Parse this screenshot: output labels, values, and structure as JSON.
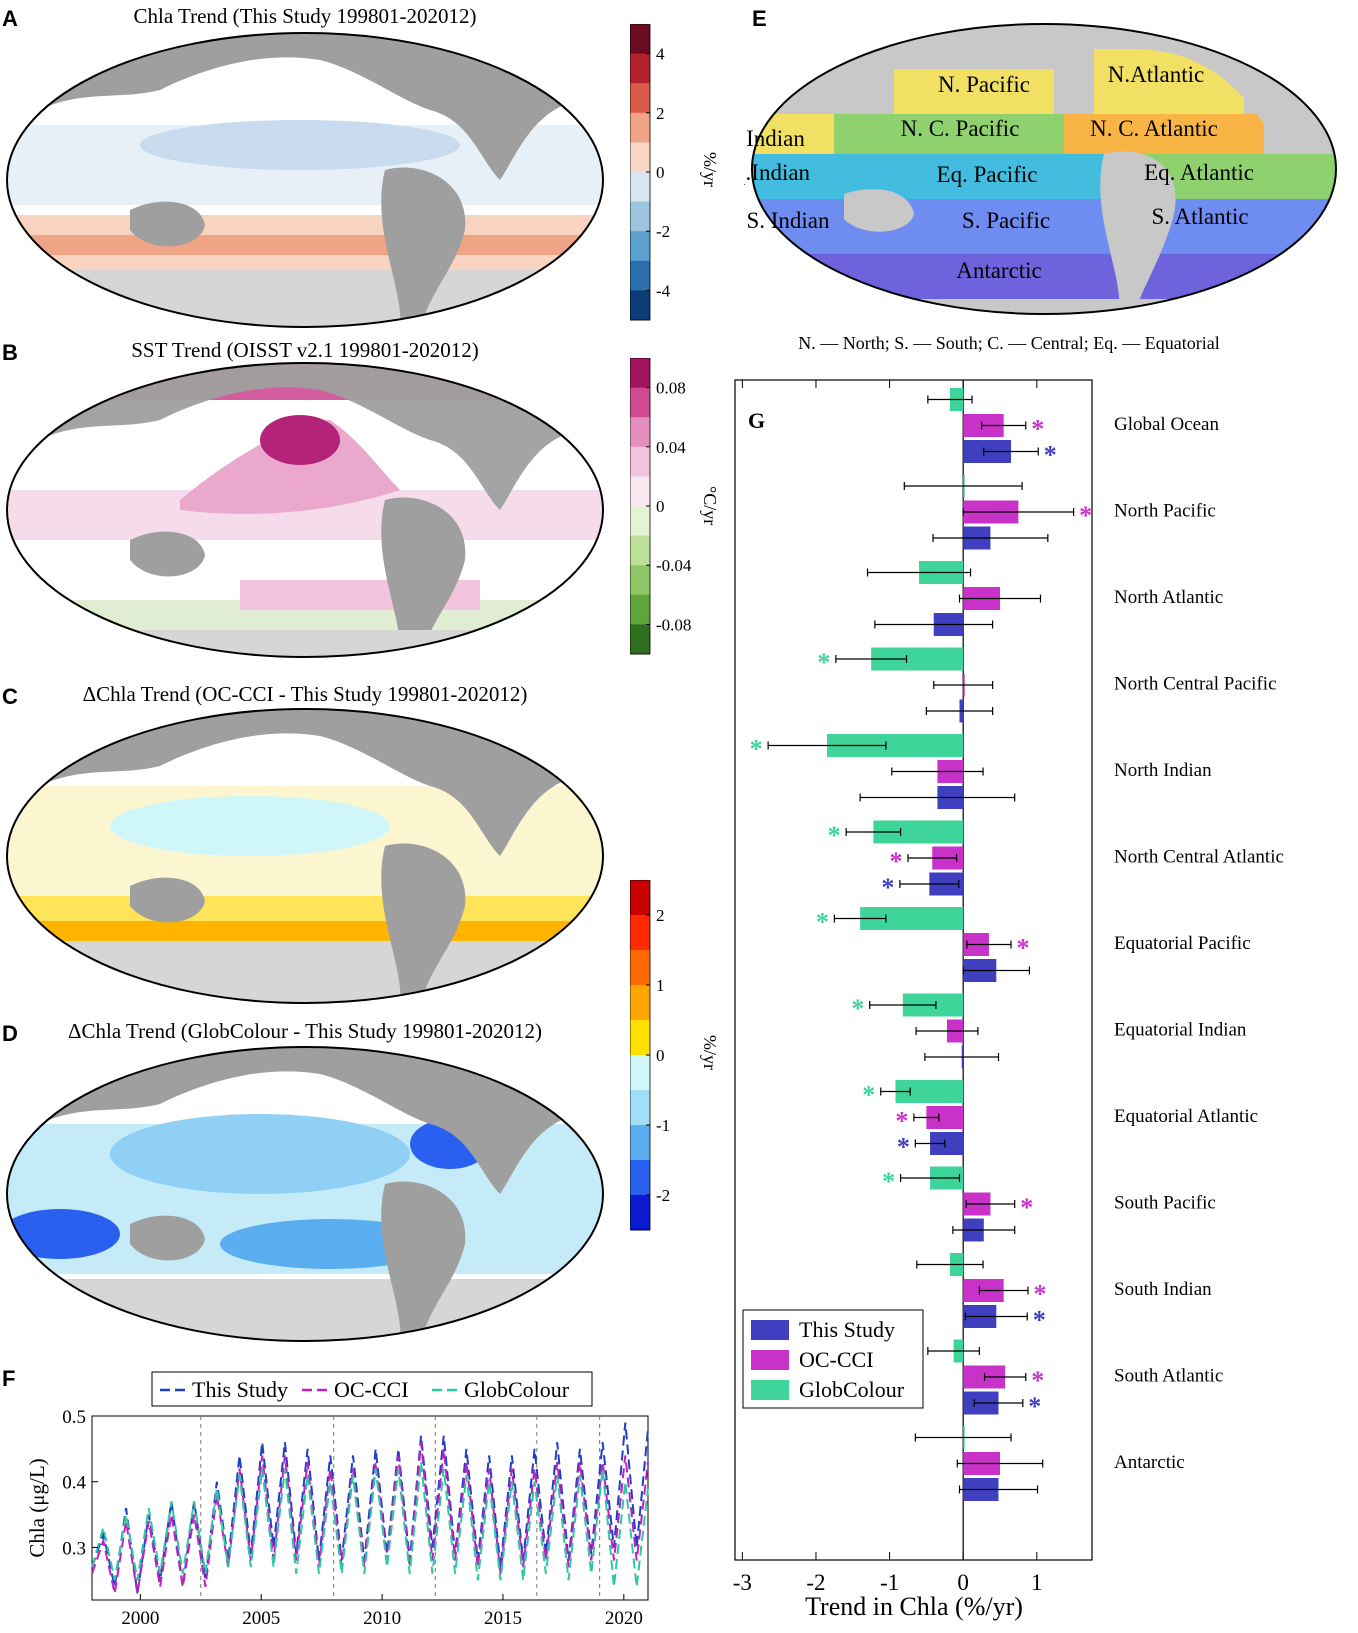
{
  "panels": {
    "A": {
      "letter": "A",
      "title": "Chla Trend (This Study 199801-202012)",
      "colorbar": {
        "ticks": [
          "4",
          "2",
          "0",
          "-2",
          "-4"
        ],
        "unit": "%/yr",
        "colors": [
          "#6b0b1f",
          "#b3212f",
          "#d95a48",
          "#f0a486",
          "#fbd7c4",
          "#d8e6f0",
          "#9cc6e0",
          "#5aa1cf",
          "#2b6fae",
          "#0d3d78"
        ]
      }
    },
    "B": {
      "letter": "B",
      "title": "SST Trend (OISST v2.1 199801-202012)",
      "colorbar": {
        "ticks": [
          "0.08",
          "0.04",
          "0",
          "-0.04",
          "-0.08"
        ],
        "unit": "°C/yr",
        "colors": [
          "#a3145f",
          "#cf4a92",
          "#e48fc0",
          "#f3c4de",
          "#fbe6f1",
          "#e6f2d4",
          "#bde099",
          "#8fc766",
          "#5fa53c",
          "#2f6e1f"
        ]
      }
    },
    "C": {
      "letter": "C",
      "title": "ΔChla Trend (OC-CCI - This Study 199801-202012)"
    },
    "D": {
      "letter": "D",
      "title": "ΔChla Trend (GlobColour - This Study 199801-202012)",
      "colorbar": {
        "ticks": [
          "2",
          "1",
          "0",
          "-1",
          "-2"
        ],
        "unit": "%/yr",
        "colors": [
          "#c80000",
          "#ff2a00",
          "#ff6a00",
          "#ffa500",
          "#ffe000",
          "#cff6f8",
          "#9fe0f8",
          "#5aaef0",
          "#2a60f0",
          "#0a1ad0"
        ]
      }
    },
    "E": {
      "letter": "E",
      "regions": [
        "N. Pacific",
        "N.Atlantic",
        "N. Indian",
        "N. C. Pacific",
        "N. C. Atlantic",
        "Eq.Indian",
        "Eq. Pacific",
        "Eq. Atlantic",
        "S. Indian",
        "S. Pacific",
        "S. Atlantic",
        "Antarctic"
      ],
      "abbrev_note": "N. — North; S. — South; C. — Central; Eq. — Equatorial"
    },
    "F": {
      "letter": "F"
    },
    "G": {
      "letter": "G"
    }
  },
  "colors": {
    "this_study": "#3f3fbf",
    "oc_cci": "#c832c8",
    "globcolour": "#3fd49a",
    "land": "#9f9f9f"
  },
  "chart_data": [
    {
      "type": "line",
      "panel": "F",
      "ylabel": "Chla (μg/L)",
      "xlim": [
        1998,
        2021
      ],
      "ylim": [
        0.22,
        0.5
      ],
      "yticks": [
        0.3,
        0.4,
        0.5
      ],
      "xticks": [
        2000,
        2005,
        2010,
        2015,
        2020
      ],
      "vlines": [
        2002.5,
        2008,
        2012.2,
        2016.4,
        2019
      ],
      "series": [
        {
          "name": "This Study",
          "color": "#1f3fc8",
          "dash": "10,5",
          "values": [
            0.27,
            0.32,
            0.24,
            0.36,
            0.23,
            0.35,
            0.25,
            0.37,
            0.24,
            0.37,
            0.25,
            0.4,
            0.28,
            0.44,
            0.29,
            0.46,
            0.3,
            0.46,
            0.29,
            0.45,
            0.28,
            0.44,
            0.28,
            0.44,
            0.28,
            0.45,
            0.29,
            0.45,
            0.28,
            0.47,
            0.3,
            0.47,
            0.29,
            0.45,
            0.28,
            0.44,
            0.27,
            0.44,
            0.28,
            0.45,
            0.29,
            0.46,
            0.28,
            0.45,
            0.29,
            0.46,
            0.3,
            0.49,
            0.3,
            0.48
          ]
        },
        {
          "name": "OC-CCI",
          "color": "#c020c0",
          "dash": "10,5",
          "values": [
            0.26,
            0.31,
            0.23,
            0.34,
            0.23,
            0.34,
            0.24,
            0.35,
            0.24,
            0.35,
            0.24,
            0.38,
            0.27,
            0.42,
            0.28,
            0.44,
            0.28,
            0.44,
            0.28,
            0.43,
            0.27,
            0.42,
            0.27,
            0.42,
            0.27,
            0.43,
            0.28,
            0.44,
            0.27,
            0.46,
            0.28,
            0.45,
            0.28,
            0.43,
            0.27,
            0.42,
            0.26,
            0.42,
            0.27,
            0.42,
            0.28,
            0.43,
            0.27,
            0.43,
            0.28,
            0.43,
            0.28,
            0.44,
            0.28,
            0.43
          ]
        },
        {
          "name": "GlobColour",
          "color": "#30c8a0",
          "dash": "10,5",
          "values": [
            0.27,
            0.33,
            0.25,
            0.35,
            0.25,
            0.36,
            0.26,
            0.37,
            0.26,
            0.37,
            0.26,
            0.39,
            0.27,
            0.41,
            0.27,
            0.42,
            0.27,
            0.42,
            0.26,
            0.41,
            0.26,
            0.4,
            0.26,
            0.41,
            0.26,
            0.42,
            0.27,
            0.42,
            0.26,
            0.43,
            0.26,
            0.42,
            0.26,
            0.41,
            0.25,
            0.4,
            0.25,
            0.4,
            0.25,
            0.4,
            0.26,
            0.41,
            0.25,
            0.41,
            0.26,
            0.42,
            0.24,
            0.4,
            0.24,
            0.39
          ]
        }
      ]
    },
    {
      "type": "bar",
      "panel": "G",
      "orientation": "horizontal",
      "xlabel": "Trend in Chla (%/yr)",
      "xlim": [
        -3.1,
        1.75
      ],
      "xticks": [
        -3,
        -2,
        -1,
        0,
        1
      ],
      "legend_position": "bottom-left",
      "categories": [
        "Global Ocean",
        "North Pacific",
        "North Atlantic",
        "North Central Pacific",
        "North Indian",
        "North Central Atlantic",
        "Equatorial Pacific",
        "Equatorial Indian",
        "Equatorial Atlantic",
        "South Pacific",
        "South Indian",
        "South Atlantic",
        "Antarctic"
      ],
      "series": [
        {
          "name": "GlobColour",
          "color": "#3fd49a",
          "values": [
            -0.18,
            0.0,
            -0.6,
            -1.25,
            -1.85,
            -1.22,
            -1.4,
            -0.82,
            -0.92,
            -0.45,
            -0.18,
            -0.13,
            0.0
          ],
          "err": [
            0.3,
            0.8,
            0.7,
            0.48,
            0.8,
            0.37,
            0.35,
            0.45,
            0.2,
            0.4,
            0.45,
            0.35,
            0.65
          ],
          "significant": [
            false,
            false,
            false,
            true,
            true,
            true,
            true,
            true,
            true,
            true,
            false,
            false,
            false
          ]
        },
        {
          "name": "OC-CCI",
          "color": "#c832c8",
          "values": [
            0.55,
            0.75,
            0.5,
            0.0,
            -0.35,
            -0.42,
            0.35,
            -0.22,
            -0.5,
            0.37,
            0.55,
            0.57,
            0.5
          ],
          "err": [
            0.3,
            0.75,
            0.55,
            0.4,
            0.62,
            0.33,
            0.3,
            0.42,
            0.17,
            0.33,
            0.33,
            0.28,
            0.58
          ],
          "significant": [
            true,
            true,
            false,
            false,
            false,
            true,
            true,
            false,
            true,
            true,
            true,
            true,
            false
          ]
        },
        {
          "name": "This Study",
          "color": "#3f3fbf",
          "values": [
            0.65,
            0.37,
            -0.4,
            -0.05,
            -0.35,
            -0.46,
            0.45,
            -0.02,
            -0.45,
            0.28,
            0.45,
            0.48,
            0.48
          ],
          "err": [
            0.37,
            0.78,
            0.8,
            0.45,
            1.05,
            0.4,
            0.45,
            0.5,
            0.2,
            0.42,
            0.42,
            0.33,
            0.53
          ],
          "significant": [
            true,
            false,
            false,
            false,
            false,
            true,
            false,
            false,
            true,
            false,
            true,
            true,
            false
          ]
        }
      ]
    }
  ]
}
